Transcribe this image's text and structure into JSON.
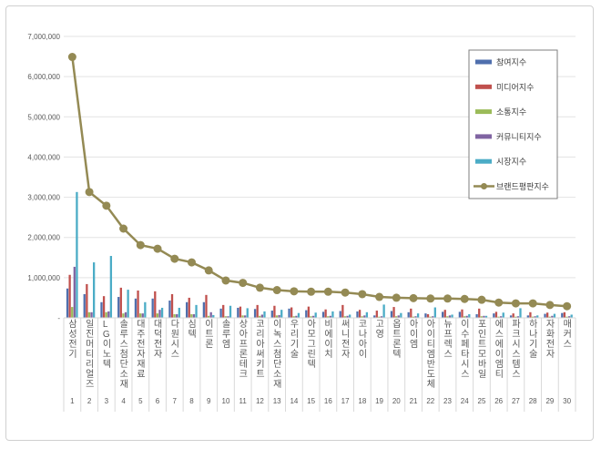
{
  "chart_data": {
    "type": "bar",
    "title": "",
    "xlabel": "",
    "ylabel": "",
    "ylim": [
      0,
      7000000
    ],
    "yticks": [
      0,
      1000000,
      2000000,
      3000000,
      4000000,
      5000000,
      6000000,
      7000000
    ],
    "ytick_labels": [
      "-",
      "1,000,000",
      "2,000,000",
      "3,000,000",
      "4,000,000",
      "5,000,000",
      "6,000,000",
      "7,000,000"
    ],
    "grid": true,
    "legend_position": "top-right",
    "ranks": [
      "1",
      "2",
      "3",
      "4",
      "5",
      "6",
      "7",
      "8",
      "9",
      "10",
      "11",
      "12",
      "13",
      "14",
      "15",
      "16",
      "17",
      "18",
      "19",
      "20",
      "21",
      "22",
      "23",
      "24",
      "25",
      "26",
      "27",
      "28",
      "29",
      "30"
    ],
    "categories": [
      "삼성전기",
      "일진머티리얼즈",
      "LG이노텍",
      "솔루스첨단소재",
      "대주전자재료",
      "대덕전자",
      "다원시스",
      "심텍",
      "이트론",
      "솔루엠",
      "상아프론테크",
      "코리아써키트",
      "이녹스첨단소재",
      "우리기술",
      "아모그린텍",
      "비에이치",
      "써니전자",
      "코나아이",
      "고영",
      "옵트론텍",
      "아이엠",
      "아이티엠반도체",
      "뉴프렉스",
      "이수페타시스",
      "포인트모바일",
      "에스에이엠티",
      "파크시스템스",
      "하나기술",
      "자화전자",
      "매커스"
    ],
    "series": [
      {
        "name": "참여지수",
        "type": "bar",
        "color": "#4f6fad",
        "values": [
          730000,
          590000,
          390000,
          520000,
          480000,
          480000,
          430000,
          390000,
          390000,
          230000,
          250000,
          220000,
          180000,
          230000,
          190000,
          150000,
          170000,
          160000,
          60000,
          170000,
          140000,
          110000,
          150000,
          150000,
          90000,
          110000,
          60000,
          60000,
          100000,
          120000
        ]
      },
      {
        "name": "미디어지수",
        "type": "bar",
        "color": "#c0504d",
        "values": [
          1070000,
          840000,
          540000,
          750000,
          680000,
          660000,
          590000,
          500000,
          570000,
          320000,
          280000,
          320000,
          300000,
          260000,
          280000,
          210000,
          320000,
          200000,
          180000,
          270000,
          230000,
          90000,
          200000,
          210000,
          230000,
          150000,
          110000,
          140000,
          130000,
          140000
        ]
      },
      {
        "name": "소통지수",
        "type": "bar",
        "color": "#9bbb59",
        "values": [
          270000,
          140000,
          140000,
          110000,
          110000,
          110000,
          90000,
          90000,
          50000,
          40000,
          60000,
          50000,
          60000,
          40000,
          40000,
          40000,
          40000,
          40000,
          30000,
          40000,
          30000,
          30000,
          40000,
          40000,
          40000,
          30000,
          30000,
          30000,
          30000,
          30000
        ]
      },
      {
        "name": "커뮤니티지수",
        "type": "bar",
        "color": "#8064a2",
        "values": [
          1270000,
          140000,
          160000,
          140000,
          110000,
          200000,
          90000,
          90000,
          140000,
          40000,
          60000,
          80000,
          70000,
          50000,
          50000,
          50000,
          50000,
          60000,
          40000,
          60000,
          40000,
          40000,
          60000,
          50000,
          50000,
          40000,
          40000,
          40000,
          50000,
          40000
        ]
      },
      {
        "name": "시장지수",
        "type": "bar",
        "color": "#4bacc6",
        "values": [
          3130000,
          1380000,
          1540000,
          700000,
          390000,
          250000,
          250000,
          320000,
          70000,
          300000,
          240000,
          160000,
          200000,
          120000,
          130000,
          160000,
          80000,
          140000,
          330000,
          120000,
          110000,
          260000,
          80000,
          90000,
          50000,
          130000,
          240000,
          60000,
          100000,
          80000
        ]
      },
      {
        "name": "브랜드평판지수",
        "type": "line",
        "color": "#948a54",
        "values": [
          6490000,
          3130000,
          2790000,
          2220000,
          1810000,
          1720000,
          1470000,
          1380000,
          1180000,
          930000,
          870000,
          750000,
          690000,
          660000,
          650000,
          650000,
          630000,
          590000,
          520000,
          500000,
          490000,
          480000,
          480000,
          470000,
          450000,
          380000,
          360000,
          360000,
          320000,
          290000
        ]
      }
    ]
  }
}
